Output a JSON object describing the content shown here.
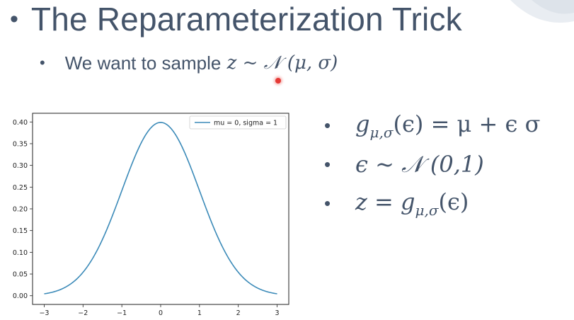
{
  "slide": {
    "title": "The Reparameterization Trick",
    "bullet_symbol": "•",
    "sub_bullet_symbol": "•",
    "sub_bullet_text": "We want to sample",
    "sub_bullet_math": {
      "var": "z",
      "op": "~",
      "dist": "𝒩",
      "args": "(μ, σ)"
    }
  },
  "equations": [
    {
      "func": "g",
      "sub": "μ,σ",
      "lhs_arg": "(ϵ)",
      "rhs": " = μ + ϵ σ"
    },
    {
      "lhs": "ϵ ~ 𝒩 (0,1)"
    },
    {
      "lhs": "z = ",
      "func": "g",
      "sub": "μ,σ",
      "rhs": "(ϵ)"
    }
  ],
  "chart_data": {
    "type": "line",
    "legend": "mu = 0, sigma = 1",
    "legend_position": "top-right",
    "series": [
      {
        "name": "mu = 0, sigma = 1",
        "mu": 0,
        "sigma": 1,
        "x_range": [
          -3,
          3
        ],
        "color": "#3b8ab8"
      }
    ],
    "xlim": [
      -3.3,
      3.3
    ],
    "ylim": [
      -0.02,
      0.42
    ],
    "xticks": [
      "−3",
      "−2",
      "−1",
      "0",
      "1",
      "2",
      "3"
    ],
    "xtick_values": [
      -3,
      -2,
      -1,
      0,
      1,
      2,
      3
    ],
    "yticks": [
      "0.00",
      "0.05",
      "0.10",
      "0.15",
      "0.20",
      "0.25",
      "0.30",
      "0.35",
      "0.40"
    ],
    "ytick_values": [
      0,
      0.05,
      0.1,
      0.15,
      0.2,
      0.25,
      0.3,
      0.35,
      0.4
    ],
    "grid": false
  },
  "colors": {
    "text": "#44546a",
    "line": "#3b8ab8",
    "cursor": "#e53935"
  }
}
